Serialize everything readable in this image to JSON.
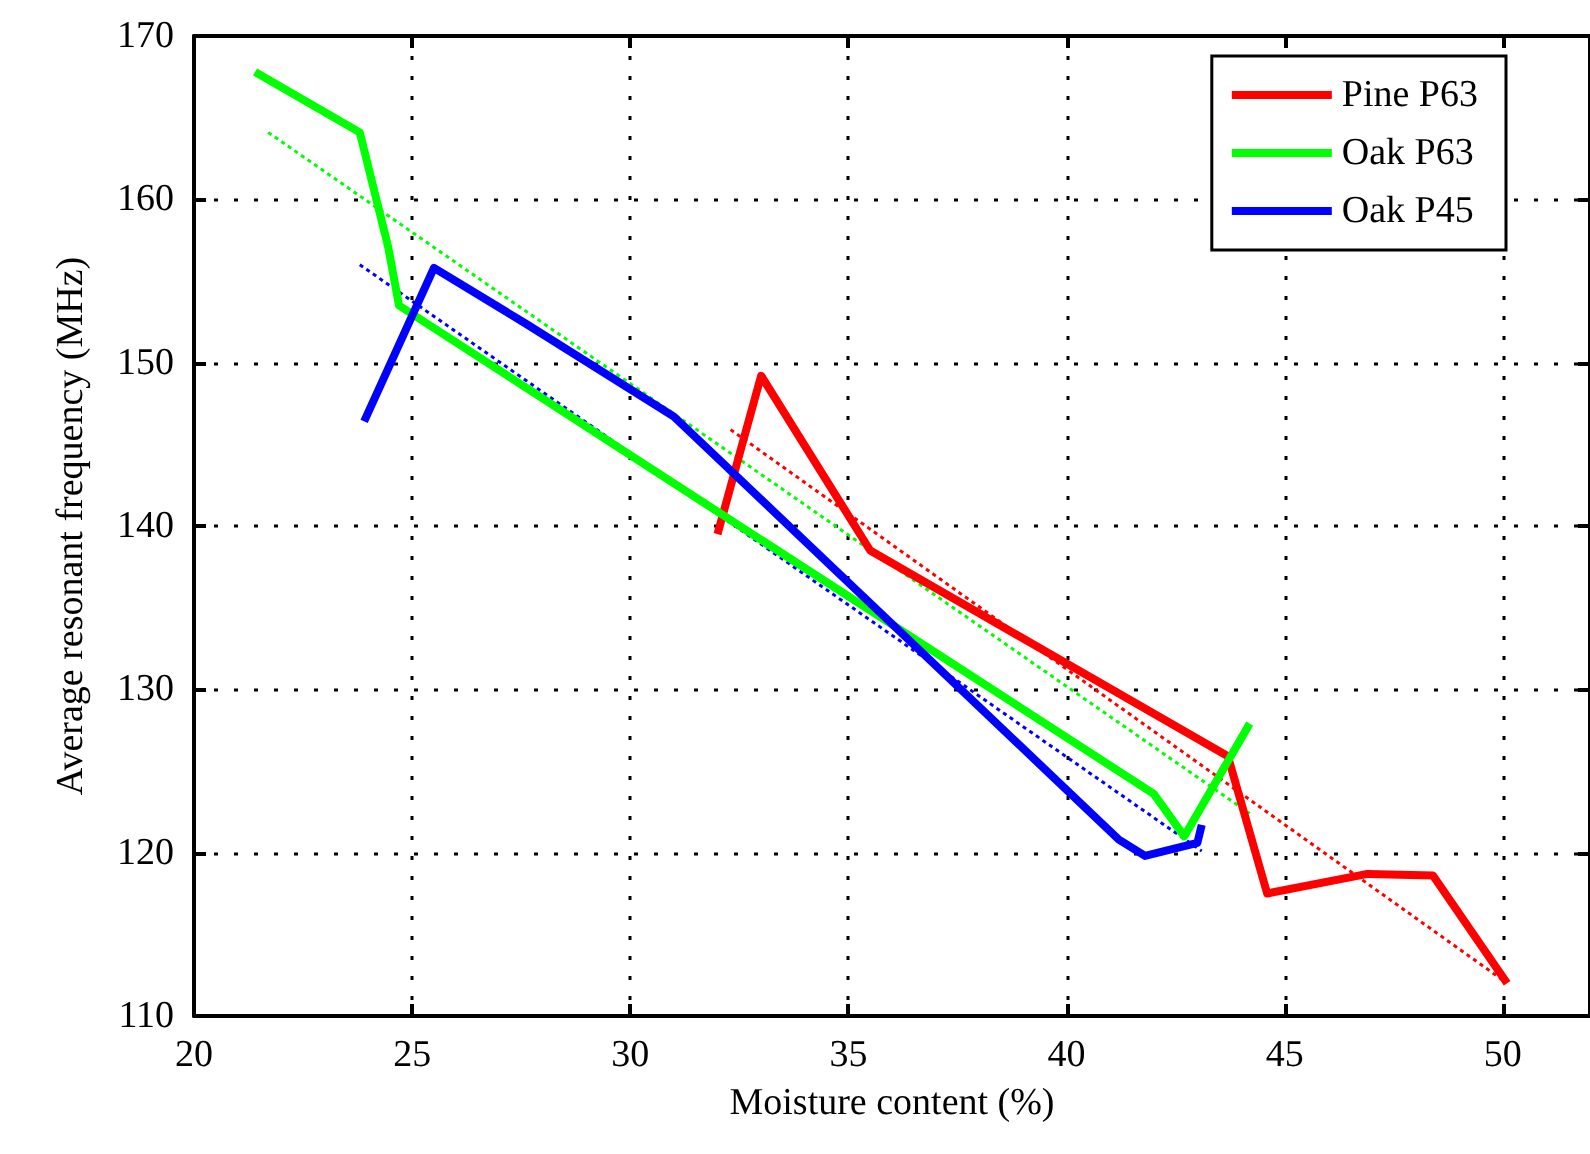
{
  "chart_data": {
    "type": "line",
    "xlabel": "Moisture content (%)",
    "ylabel": "Average resonant frequency (MHz)",
    "xlim": [
      20,
      52
    ],
    "ylim": [
      110,
      170
    ],
    "xticks": [
      20,
      25,
      30,
      35,
      40,
      45,
      50
    ],
    "yticks": [
      110,
      120,
      130,
      140,
      150,
      160,
      170
    ],
    "grid": true,
    "legend": "top right",
    "marker": "none",
    "line_style": "solid",
    "series": [
      {
        "name": "Pine P63",
        "color": "#ff0000",
        "x": [
          32.0,
          33.0,
          35.5,
          43.7,
          44.6,
          46.9,
          48.4,
          50.1
        ],
        "values": [
          139.5,
          149.2,
          138.5,
          125.9,
          117.5,
          118.7,
          118.6,
          112.0
        ]
      },
      {
        "name": "Oak P63",
        "color": "#00ff00",
        "x": [
          21.4,
          23.8,
          24.45,
          24.7,
          42.0,
          42.7,
          44.2
        ],
        "values": [
          167.8,
          164.1,
          157.1,
          153.5,
          123.6,
          121.0,
          127.9
        ]
      },
      {
        "name": "Oak P45",
        "color": "#0000ff",
        "x": [
          23.9,
          25.5,
          27.6,
          31.0,
          41.2,
          41.8,
          43.0,
          43.1
        ],
        "values": [
          146.4,
          155.8,
          152.4,
          146.7,
          120.8,
          119.8,
          120.6,
          121.7
        ]
      },
      {
        "color": "#ff0000",
        "line_style": "dotted",
        "x": [
          32.3,
          50.0
        ],
        "values": [
          145.9,
          112.2
        ]
      },
      {
        "color": "#00ff00",
        "line_style": "dotted",
        "x": [
          21.7,
          44.2
        ],
        "values": [
          164.1,
          122.4
        ]
      },
      {
        "color": "#0000ff",
        "line_style": "dotted",
        "x": [
          23.8,
          43.1
        ],
        "values": [
          156.0,
          120.1
        ]
      }
    ]
  }
}
